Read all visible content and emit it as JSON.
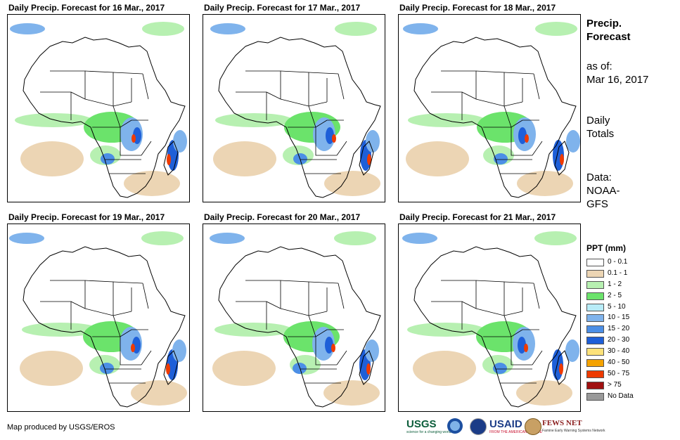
{
  "panels": [
    {
      "title": "Daily Precip. Forecast for 16 Mar., 2017"
    },
    {
      "title": "Daily Precip. Forecast for 17 Mar., 2017"
    },
    {
      "title": "Daily Precip. Forecast for 18 Mar., 2017"
    },
    {
      "title": "Daily Precip. Forecast for 19 Mar., 2017"
    },
    {
      "title": "Daily Precip. Forecast for 20 Mar., 2017"
    },
    {
      "title": "Daily Precip. Forecast for 21 Mar., 2017"
    }
  ],
  "info": {
    "heading_line1": "Precip.",
    "heading_line2": "Forecast",
    "asof_label": "as of:",
    "asof_date": "Mar 16, 2017",
    "totals_line1": "Daily",
    "totals_line2": "Totals",
    "data_label": "Data:",
    "data_line1": "NOAA-",
    "data_line2": "GFS"
  },
  "legend": {
    "title": "PPT (mm)",
    "items": [
      {
        "label": "0 - 0.1",
        "color": "#ffffff"
      },
      {
        "label": "0.1 - 1",
        "color": "#ecd5b4"
      },
      {
        "label": "1 - 2",
        "color": "#b7f0b1"
      },
      {
        "label": "2 - 5",
        "color": "#6be36b"
      },
      {
        "label": "5 - 10",
        "color": "#b8ecf8"
      },
      {
        "label": "10 - 15",
        "color": "#7fb3ec"
      },
      {
        "label": "15 - 20",
        "color": "#4c8fe6"
      },
      {
        "label": "20 - 30",
        "color": "#1e5fd8"
      },
      {
        "label": "30 - 40",
        "color": "#fde27a"
      },
      {
        "label": "40 - 50",
        "color": "#f5a300"
      },
      {
        "label": "50 - 75",
        "color": "#ee3a00"
      },
      {
        "label": "> 75",
        "color": "#a01010"
      },
      {
        "label": "No Data",
        "color": "#999999"
      }
    ]
  },
  "credit": "Map produced by USGS/EROS",
  "logos": {
    "usgs": "USGS",
    "usgs_tagline": "science for a changing world",
    "usaid": "USAID",
    "usaid_tagline": "FROM THE AMERICAN PEOPLE",
    "fews": "FEWS NET",
    "fews_tagline": "Famine Early Warning Systems Network"
  }
}
